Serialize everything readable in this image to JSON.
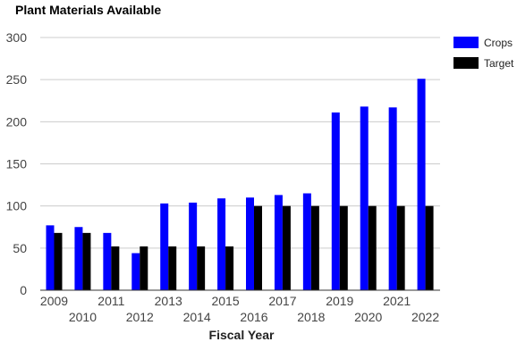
{
  "chart_data": {
    "type": "bar",
    "title": "Plant Materials Available",
    "xlabel": "Fiscal Year",
    "ylabel": "",
    "ylim": [
      0,
      300
    ],
    "yticks": [
      0,
      50,
      100,
      150,
      200,
      250,
      300
    ],
    "grid": true,
    "legend_position": "top-right",
    "categories": [
      "2009",
      "2010",
      "2011",
      "2012",
      "2013",
      "2014",
      "2015",
      "2016",
      "2017",
      "2018",
      "2019",
      "2020",
      "2021",
      "2022"
    ],
    "series": [
      {
        "name": "Crops",
        "color": "#0000ff",
        "values": [
          77,
          75,
          68,
          44,
          103,
          104,
          109,
          110,
          113,
          115,
          211,
          218,
          217,
          251
        ]
      },
      {
        "name": "Target",
        "color": "#000000",
        "values": [
          68,
          68,
          52,
          52,
          52,
          52,
          52,
          100,
          100,
          100,
          100,
          100,
          100,
          100
        ]
      }
    ]
  }
}
